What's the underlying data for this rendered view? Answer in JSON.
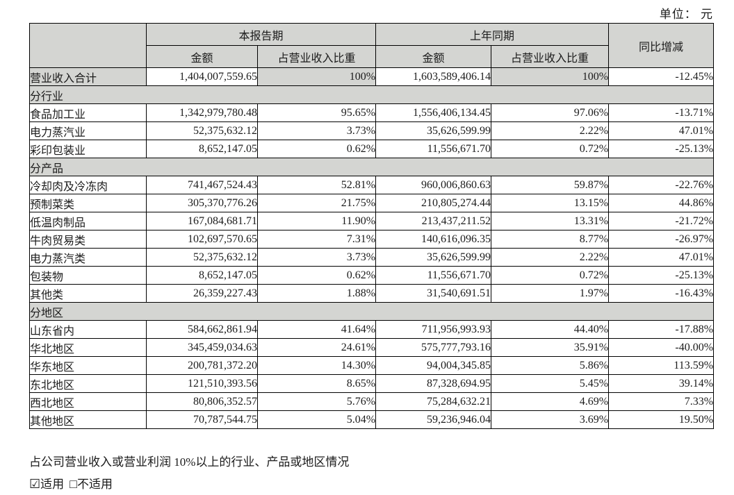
{
  "unit_label": "单位： 元",
  "colors": {
    "cell_gray": "#d4d5d2",
    "border": "#000000",
    "text": "#1b1b1b",
    "page_bg": "#ffffff"
  },
  "table": {
    "header": {
      "current_period": "本报告期",
      "prior_period": "上年同期",
      "yoy": "同比增减",
      "amount": "金额",
      "proportion": "占营业收入比重"
    },
    "rows": [
      {
        "type": "total",
        "label": "营业收入合计",
        "cur_amount": "1,404,007,559.65",
        "cur_pct": "100%",
        "prior_amount": "1,603,589,406.14",
        "prior_pct": "100%",
        "yoy": "-12.45%"
      },
      {
        "type": "section",
        "label": "分行业"
      },
      {
        "type": "data",
        "label": "食品加工业",
        "cur_amount": "1,342,979,780.48",
        "cur_pct": "95.65%",
        "prior_amount": "1,556,406,134.45",
        "prior_pct": "97.06%",
        "yoy": "-13.71%"
      },
      {
        "type": "data",
        "label": "电力蒸汽业",
        "cur_amount": "52,375,632.12",
        "cur_pct": "3.73%",
        "prior_amount": "35,626,599.99",
        "prior_pct": "2.22%",
        "yoy": "47.01%"
      },
      {
        "type": "data",
        "label": "彩印包装业",
        "cur_amount": "8,652,147.05",
        "cur_pct": "0.62%",
        "prior_amount": "11,556,671.70",
        "prior_pct": "0.72%",
        "yoy": "-25.13%"
      },
      {
        "type": "section",
        "label": "分产品"
      },
      {
        "type": "data",
        "label": "冷却肉及冷冻肉",
        "cur_amount": "741,467,524.43",
        "cur_pct": "52.81%",
        "prior_amount": "960,006,860.63",
        "prior_pct": "59.87%",
        "yoy": "-22.76%"
      },
      {
        "type": "data",
        "label": "预制菜类",
        "cur_amount": "305,370,776.26",
        "cur_pct": "21.75%",
        "prior_amount": "210,805,274.44",
        "prior_pct": "13.15%",
        "yoy": "44.86%"
      },
      {
        "type": "data",
        "label": "低温肉制品",
        "cur_amount": "167,084,681.71",
        "cur_pct": "11.90%",
        "prior_amount": "213,437,211.52",
        "prior_pct": "13.31%",
        "yoy": "-21.72%"
      },
      {
        "type": "data",
        "label": "牛肉贸易类",
        "cur_amount": "102,697,570.65",
        "cur_pct": "7.31%",
        "prior_amount": "140,616,096.35",
        "prior_pct": "8.77%",
        "yoy": "-26.97%"
      },
      {
        "type": "data",
        "label": "电力蒸汽类",
        "cur_amount": "52,375,632.12",
        "cur_pct": "3.73%",
        "prior_amount": "35,626,599.99",
        "prior_pct": "2.22%",
        "yoy": "47.01%"
      },
      {
        "type": "data",
        "label": "包装物",
        "cur_amount": "8,652,147.05",
        "cur_pct": "0.62%",
        "prior_amount": "11,556,671.70",
        "prior_pct": "0.72%",
        "yoy": "-25.13%"
      },
      {
        "type": "data",
        "label": "其他类",
        "cur_amount": "26,359,227.43",
        "cur_pct": "1.88%",
        "prior_amount": "31,540,691.51",
        "prior_pct": "1.97%",
        "yoy": "-16.43%"
      },
      {
        "type": "section",
        "label": "分地区"
      },
      {
        "type": "data",
        "label": "山东省内",
        "cur_amount": "584,662,861.94",
        "cur_pct": "41.64%",
        "prior_amount": "711,956,993.93",
        "prior_pct": "44.40%",
        "yoy": "-17.88%"
      },
      {
        "type": "data",
        "label": "华北地区",
        "cur_amount": "345,459,034.63",
        "cur_pct": "24.61%",
        "prior_amount": "575,777,793.16",
        "prior_pct": "35.91%",
        "yoy": "-40.00%"
      },
      {
        "type": "data",
        "label": "华东地区",
        "cur_amount": "200,781,372.20",
        "cur_pct": "14.30%",
        "prior_amount": "94,004,345.85",
        "prior_pct": "5.86%",
        "yoy": "113.59%"
      },
      {
        "type": "data",
        "label": "东北地区",
        "cur_amount": "121,510,393.56",
        "cur_pct": "8.65%",
        "prior_amount": "87,328,694.95",
        "prior_pct": "5.45%",
        "yoy": "39.14%"
      },
      {
        "type": "data",
        "label": "西北地区",
        "cur_amount": "80,806,352.57",
        "cur_pct": "5.76%",
        "prior_amount": "75,284,632.21",
        "prior_pct": "4.69%",
        "yoy": "7.33%"
      },
      {
        "type": "data",
        "label": "其他地区",
        "cur_amount": "70,787,544.75",
        "cur_pct": "5.04%",
        "prior_amount": "59,236,946.04",
        "prior_pct": "3.69%",
        "yoy": "19.50%"
      }
    ]
  },
  "footer": {
    "note": "占公司营业收入或营业利润 10%以上的行业、产品或地区情况",
    "applicable": {
      "checkbox": "☑",
      "label": "适用"
    },
    "not_applicable": {
      "checkbox": "□",
      "label": "不适用"
    }
  }
}
